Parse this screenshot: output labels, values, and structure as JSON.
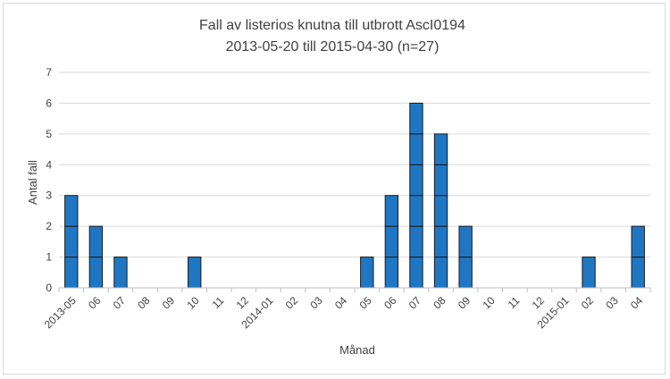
{
  "chart_data": {
    "type": "bar",
    "stacked_units": true,
    "title": "Fall av listerios knutna till utbrott AscI0194",
    "subtitle": "2013-05-20 till 2015-04-30 (n=27)",
    "xlabel": "Månad",
    "ylabel": "Antal fall",
    "ylim": [
      0,
      7
    ],
    "yticks": [
      0,
      1,
      2,
      3,
      4,
      5,
      6,
      7
    ],
    "grid": true,
    "legend": "none",
    "categories": [
      "2013-05",
      "06",
      "07",
      "08",
      "09",
      "10",
      "11",
      "12",
      "2014-01",
      "02",
      "03",
      "04",
      "05",
      "06",
      "07",
      "08",
      "09",
      "10",
      "11",
      "12",
      "2015-01",
      "02",
      "03",
      "04"
    ],
    "values": [
      3,
      2,
      1,
      0,
      0,
      1,
      0,
      0,
      0,
      0,
      0,
      0,
      1,
      3,
      6,
      5,
      2,
      0,
      0,
      0,
      0,
      1,
      0,
      2
    ],
    "colors": {
      "bar": "#1f77c4",
      "bar_edge": "#1a1a1a",
      "grid": "#d9d9d9",
      "axis": "#bfbfbf",
      "text": "#404040"
    }
  }
}
